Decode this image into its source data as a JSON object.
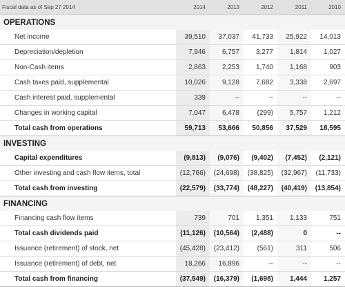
{
  "header": {
    "label": "Fiscal data as of Sep 27 2014",
    "years": [
      "2014",
      "2013",
      "2012",
      "2011",
      "2010"
    ]
  },
  "sections": [
    {
      "title": "OPERATIONS",
      "rows": [
        {
          "label": "Net income",
          "bold": false,
          "values": [
            "39,510",
            "37,037",
            "41,733",
            "25,922",
            "14,013"
          ]
        },
        {
          "label": "Depreciation/depletion",
          "bold": false,
          "values": [
            "7,946",
            "6,757",
            "3,277",
            "1,814",
            "1,027"
          ]
        },
        {
          "label": "Non-Cash items",
          "bold": false,
          "values": [
            "2,863",
            "2,253",
            "1,740",
            "1,168",
            "903"
          ]
        },
        {
          "label": "Cash taxes paid, supplemental",
          "bold": false,
          "values": [
            "10,026",
            "9,128",
            "7,682",
            "3,338",
            "2,697"
          ]
        },
        {
          "label": "Cash interest paid, supplemental",
          "bold": false,
          "values": [
            "339",
            "--",
            "--",
            "--",
            "--"
          ]
        },
        {
          "label": "Changes in working capital",
          "bold": false,
          "values": [
            "7,047",
            "6,478",
            "(299)",
            "5,757",
            "1,212"
          ]
        },
        {
          "label": "Total cash from operations",
          "bold": true,
          "values": [
            "59,713",
            "53,666",
            "50,856",
            "37,529",
            "18,595"
          ]
        }
      ]
    },
    {
      "title": "INVESTING",
      "rows": [
        {
          "label": "Capital expenditures",
          "bold": true,
          "values": [
            "(9,813)",
            "(9,076)",
            "(9,402)",
            "(7,452)",
            "(2,121)"
          ]
        },
        {
          "label": "Other investing and cash flow items, total",
          "bold": false,
          "values": [
            "(12,766)",
            "(24,698)",
            "(38,825)",
            "(32,967)",
            "(11,733)"
          ]
        },
        {
          "label": "Total cash from investing",
          "bold": true,
          "values": [
            "(22,579)",
            "(33,774)",
            "(48,227)",
            "(40,419)",
            "(13,854)"
          ]
        }
      ]
    },
    {
      "title": "FINANCING",
      "rows": [
        {
          "label": "Financing cash flow items",
          "bold": false,
          "values": [
            "739",
            "701",
            "1,351",
            "1,133",
            "751"
          ]
        },
        {
          "label": "Total cash dividends paid",
          "bold": true,
          "values": [
            "(11,126)",
            "(10,564)",
            "(2,488)",
            "0",
            "--"
          ]
        },
        {
          "label": "Issuance (retirement) of stock, net",
          "bold": false,
          "values": [
            "(45,428)",
            "(23,412)",
            "(561)",
            "311",
            "506"
          ]
        },
        {
          "label": "Issuance (retirement) of debt, net",
          "bold": false,
          "values": [
            "18,266",
            "16,896",
            "--",
            "--",
            "--"
          ]
        },
        {
          "label": "Total cash from financing",
          "bold": true,
          "values": [
            "(37,549)",
            "(16,379)",
            "(1,698)",
            "1,444",
            "1,257"
          ]
        }
      ]
    }
  ]
}
